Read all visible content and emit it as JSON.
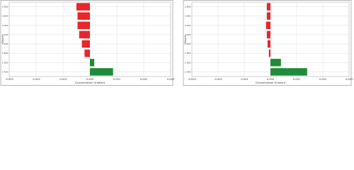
{
  "chart_data": [
    {
      "type": "hbar",
      "y_label": "Depth",
      "x_label": "Concentration Gradient",
      "categories": [
        "2.800",
        "2.600",
        "2.400",
        "2.200",
        "2.000",
        "1.800",
        "1.600",
        "1.400"
      ],
      "values": [
        -0.0005,
        -0.00046,
        -0.00046,
        -0.0004,
        -0.0003,
        -0.0002,
        0.00016,
        0.00086
      ],
      "neg_color": "#e8262b",
      "pos_color": "#1e8c3a",
      "xlim": [
        -0.003,
        0.003
      ],
      "xticks": [
        -0.003,
        -0.002,
        -0.001,
        {
          "value": 0,
          "label": "0.000"
        },
        0.001,
        0.002,
        0.003
      ],
      "grid": true
    },
    {
      "type": "hbar",
      "y_label": "Depth",
      "x_label": "Concentration Gradient",
      "categories": [
        "2.800",
        "2.600",
        "2.400",
        "2.200",
        "2.000",
        "1.800",
        "1.600",
        "1.400"
      ],
      "values": [
        -0.00014,
        -0.00014,
        -0.00017,
        -0.00014,
        -0.00011,
        -6e-05,
        0.0004,
        0.0014
      ],
      "neg_color": "#e8262b",
      "pos_color": "#1e8c3a",
      "xlim": [
        -0.003,
        0.003
      ],
      "xticks": [
        -0.003,
        -0.002,
        -0.001,
        {
          "value": 0,
          "label": "0.000"
        },
        0.001,
        0.002,
        0.003
      ],
      "grid": true
    }
  ]
}
